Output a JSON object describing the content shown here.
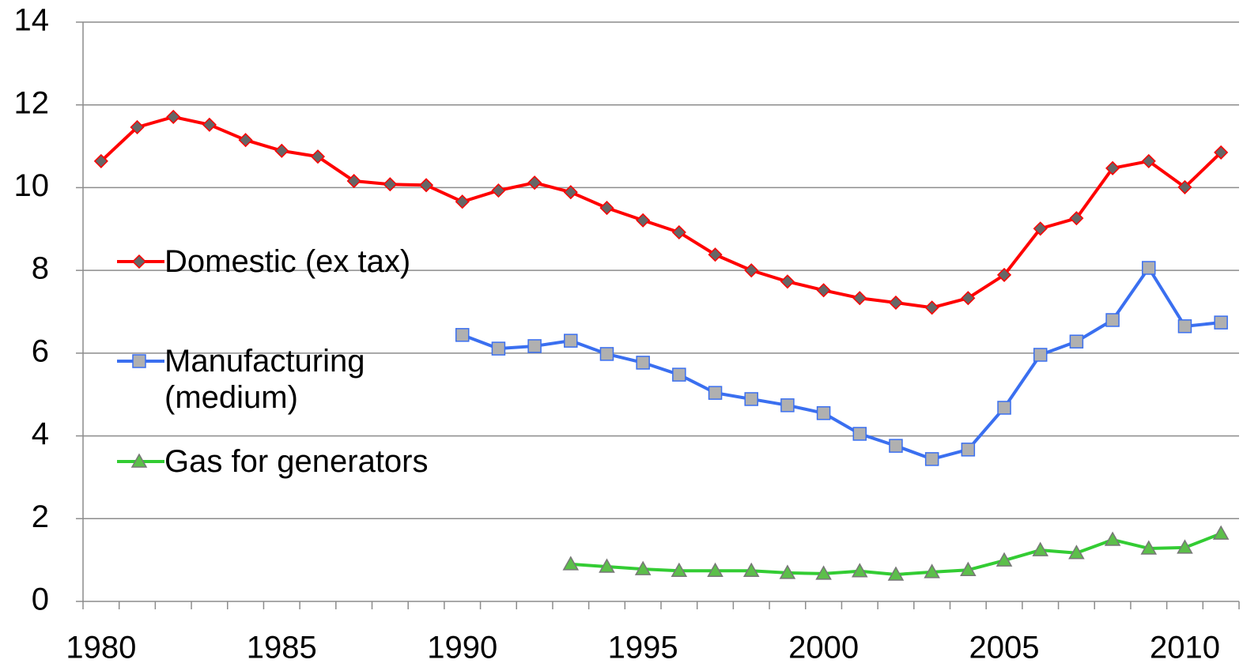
{
  "chart_data": {
    "type": "line",
    "x": [
      1980,
      1981,
      1982,
      1983,
      1984,
      1985,
      1986,
      1987,
      1988,
      1989,
      1990,
      1991,
      1992,
      1993,
      1994,
      1995,
      1996,
      1997,
      1998,
      1999,
      2000,
      2001,
      2002,
      2003,
      2004,
      2005,
      2006,
      2007,
      2008,
      2009,
      2010,
      2011
    ],
    "series": [
      {
        "name": "Domestic (ex tax)",
        "color": "#ff0000",
        "marker": "diamond",
        "marker_color": "#666666",
        "values": [
          10.64,
          11.46,
          11.71,
          11.52,
          11.15,
          10.89,
          10.75,
          10.16,
          10.08,
          10.06,
          9.66,
          9.93,
          10.12,
          9.89,
          9.51,
          9.21,
          8.92,
          8.38,
          8.0,
          7.73,
          7.52,
          7.33,
          7.22,
          7.1,
          7.33,
          7.89,
          9.01,
          9.26,
          10.47,
          10.64,
          10.01,
          10.85
        ]
      },
      {
        "name": "Manufacturing (medium)",
        "color": "#3a6ff0",
        "marker": "square",
        "marker_color": "#b0b0b0",
        "values": [
          null,
          null,
          null,
          null,
          null,
          null,
          null,
          null,
          null,
          null,
          6.44,
          6.11,
          6.17,
          6.3,
          5.98,
          5.77,
          5.48,
          5.04,
          4.89,
          4.74,
          4.55,
          4.05,
          3.76,
          3.44,
          3.67,
          4.68,
          5.96,
          6.28,
          6.8,
          8.06,
          6.65,
          6.74
        ]
      },
      {
        "name": "Gas for generators",
        "color": "#33cc33",
        "marker": "triangle",
        "marker_color": "#5cbf4a",
        "values": [
          null,
          null,
          null,
          null,
          null,
          null,
          null,
          null,
          null,
          null,
          null,
          null,
          null,
          0.9,
          0.84,
          0.78,
          0.74,
          0.74,
          0.74,
          0.69,
          0.67,
          0.73,
          0.65,
          0.71,
          0.76,
          0.99,
          1.24,
          1.17,
          1.49,
          1.28,
          1.3,
          1.64
        ]
      }
    ],
    "xlim": [
      1979.5,
      2011.5
    ],
    "xticks": [
      1980,
      1985,
      1990,
      1995,
      2000,
      2005,
      2010
    ],
    "ylim": [
      0,
      14
    ],
    "yticks": [
      0,
      2,
      4,
      6,
      8,
      10,
      12,
      14
    ],
    "grid": true
  }
}
